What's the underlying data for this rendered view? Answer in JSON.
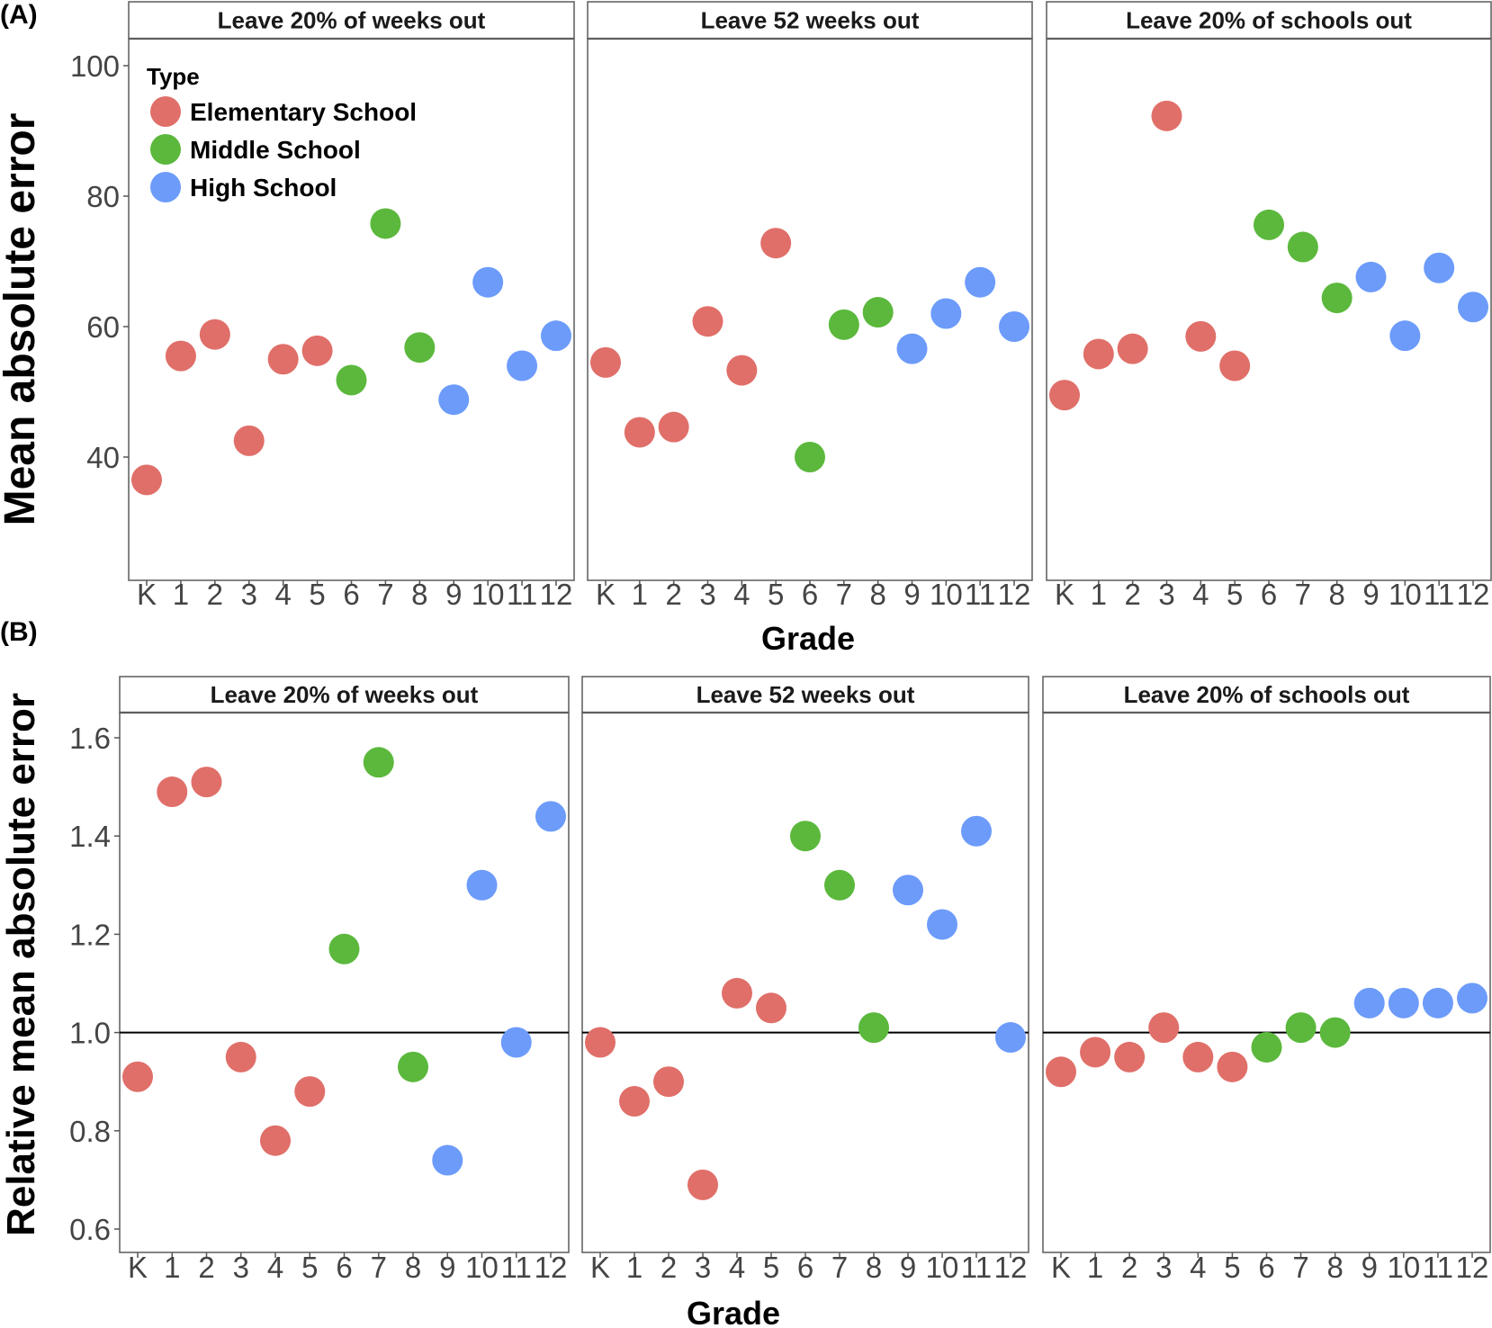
{
  "figure": {
    "panel_labels": [
      "(A)",
      "(B)"
    ],
    "x_title": "Grade",
    "legend": {
      "title": "Type",
      "items": [
        {
          "label": "Elementary School",
          "color": "#E06F69"
        },
        {
          "label": "Middle School",
          "color": "#5BB83C"
        },
        {
          "label": "High School",
          "color": "#6C9BFA"
        }
      ]
    },
    "facets": [
      "Leave 20% of weeks out",
      "Leave 52 weeks out",
      "Leave 20% of schools out"
    ]
  },
  "chart_data": [
    {
      "type": "scatter",
      "title": "(A)",
      "xlabel": "Grade",
      "ylabel": "Mean absolute error",
      "categories": [
        "K",
        "1",
        "2",
        "3",
        "4",
        "5",
        "6",
        "7",
        "8",
        "9",
        "10",
        "11",
        "12"
      ],
      "category_type": [
        "Elementary School",
        "Elementary School",
        "Elementary School",
        "Elementary School",
        "Elementary School",
        "Elementary School",
        "Middle School",
        "Middle School",
        "Middle School",
        "High School",
        "High School",
        "High School",
        "High School"
      ],
      "yticks": [
        40,
        60,
        80,
        100
      ],
      "ylim": [
        22,
        104
      ],
      "facets": [
        {
          "name": "Leave 20% of weeks out",
          "values": [
            36.5,
            55.5,
            58.8,
            42.5,
            55.0,
            56.3,
            51.8,
            75.8,
            56.8,
            48.8,
            66.8,
            54.0,
            58.6
          ]
        },
        {
          "name": "Leave 52 weeks out",
          "values": [
            54.5,
            43.8,
            44.6,
            60.8,
            53.3,
            72.8,
            40.0,
            60.3,
            62.2,
            56.6,
            62.0,
            66.8,
            60.0
          ]
        },
        {
          "name": "Leave 20% of schools out",
          "values": [
            49.5,
            55.8,
            56.6,
            92.3,
            58.5,
            54.0,
            75.6,
            72.2,
            64.4,
            67.6,
            58.6,
            69.0,
            63.0
          ]
        }
      ]
    },
    {
      "type": "scatter",
      "title": "(B)",
      "xlabel": "Grade",
      "ylabel": "Relative mean absolute error",
      "categories": [
        "K",
        "1",
        "2",
        "3",
        "4",
        "5",
        "6",
        "7",
        "8",
        "9",
        "10",
        "11",
        "12"
      ],
      "category_type": [
        "Elementary School",
        "Elementary School",
        "Elementary School",
        "Elementary School",
        "Elementary School",
        "Elementary School",
        "Middle School",
        "Middle School",
        "Middle School",
        "High School",
        "High School",
        "High School",
        "High School"
      ],
      "yticks": [
        0.6,
        0.8,
        1.0,
        1.2,
        1.4,
        1.6
      ],
      "yticklabels": [
        "0.6",
        "0.8",
        "1.0",
        "1.2",
        "1.4",
        "1.6"
      ],
      "ylim": [
        0.55,
        1.65
      ],
      "reference_line": 1.0,
      "facets": [
        {
          "name": "Leave 20% of weeks out",
          "values": [
            0.91,
            1.49,
            1.51,
            0.95,
            0.78,
            0.88,
            1.17,
            1.55,
            0.93,
            0.74,
            1.3,
            0.98,
            1.44
          ]
        },
        {
          "name": "Leave 52 weeks out",
          "values": [
            0.98,
            0.86,
            0.9,
            0.69,
            1.08,
            1.05,
            1.4,
            1.3,
            1.01,
            1.29,
            1.22,
            1.41,
            0.99
          ]
        },
        {
          "name": "Leave 20% of schools out",
          "values": [
            0.92,
            0.96,
            0.95,
            1.01,
            0.95,
            0.93,
            0.97,
            1.01,
            1.0,
            1.06,
            1.06,
            1.06,
            1.07
          ]
        }
      ]
    }
  ]
}
